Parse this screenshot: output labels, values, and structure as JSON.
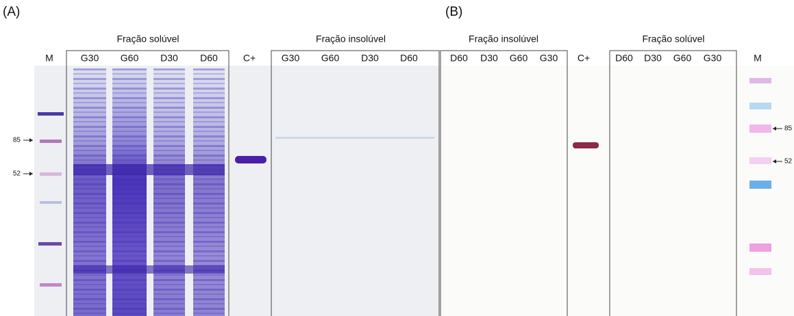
{
  "panels": [
    {
      "label": "(A)",
      "marker_lane": "M",
      "marker_sizes": [
        85,
        52
      ],
      "soluble": {
        "title": "Fração solúvel",
        "lanes": [
          "G30",
          "G60",
          "D30",
          "D60"
        ]
      },
      "control": "C+",
      "insoluble": {
        "title": "Fração insolúvel",
        "lanes": [
          "G30",
          "G60",
          "D30",
          "D60"
        ]
      }
    },
    {
      "label": "(B)",
      "marker_lane": "M",
      "marker_sizes": [
        85,
        52
      ],
      "insoluble": {
        "title": "Fração insolúvel",
        "lanes": [
          "D60",
          "D30",
          "G60",
          "G30"
        ]
      },
      "control": "C+",
      "soluble": {
        "title": "Fração solúvel",
        "lanes": [
          "D60",
          "D30",
          "G60",
          "G30"
        ]
      }
    }
  ]
}
